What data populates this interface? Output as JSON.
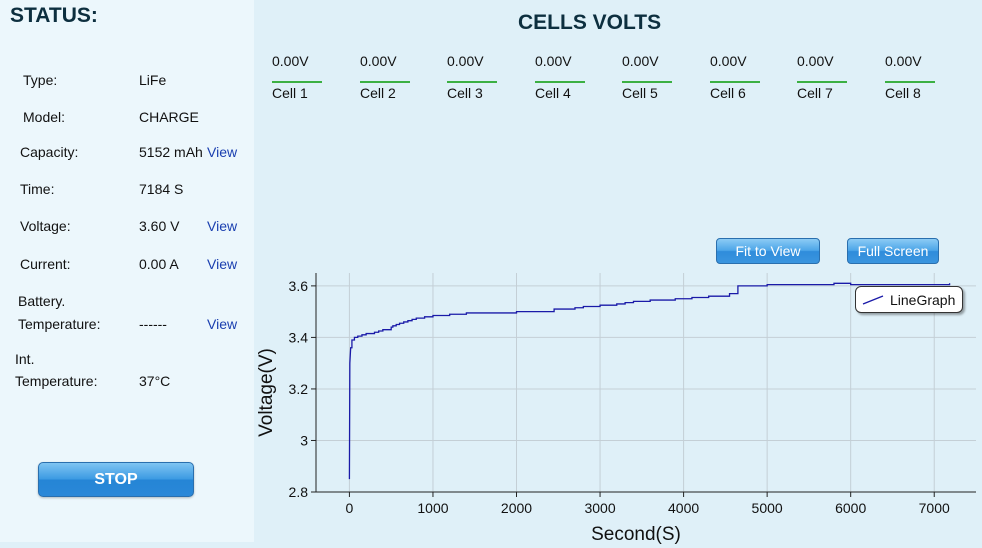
{
  "status": {
    "title": "STATUS:",
    "rows": [
      {
        "label": "Type:",
        "value": "LiFe",
        "view": ""
      },
      {
        "label": "Model:",
        "value": "CHARGE",
        "view": ""
      },
      {
        "label": "Capacity:",
        "value": "5152 mAh",
        "view": "View"
      },
      {
        "label": "Time:",
        "value": "7184 S",
        "view": ""
      },
      {
        "label": "Voltage:",
        "value": "3.60 V",
        "view": "View"
      },
      {
        "label": "Current:",
        "value": "0.00 A",
        "view": "View"
      },
      {
        "label_line1": "Battery.",
        "label_line2": "Temperature:",
        "value": "------",
        "view": "View"
      },
      {
        "label_line1": "Int.",
        "label_line2": "Temperature:",
        "value": "37°C",
        "view": ""
      }
    ],
    "stop_label": "STOP"
  },
  "cells": {
    "title": "CELLS VOLTS",
    "items": [
      {
        "value": "0.00V",
        "name": "Cell 1"
      },
      {
        "value": "0.00V",
        "name": "Cell 2"
      },
      {
        "value": "0.00V",
        "name": "Cell 3"
      },
      {
        "value": "0.00V",
        "name": "Cell 4"
      },
      {
        "value": "0.00V",
        "name": "Cell 5"
      },
      {
        "value": "0.00V",
        "name": "Cell 6"
      },
      {
        "value": "0.00V",
        "name": "Cell 7"
      },
      {
        "value": "0.00V",
        "name": "Cell 8"
      }
    ]
  },
  "buttons": {
    "fit_to_view": "Fit to View",
    "full_screen": "Full Screen"
  },
  "colors": {
    "cell_bar": "#3cb043",
    "series": "#1a1aa8",
    "button": "#3a95df"
  },
  "chart_data": {
    "type": "line",
    "xlabel": "Second(S)",
    "ylabel": "Voltage(V)",
    "xlim": [
      -400,
      7500
    ],
    "ylim": [
      2.8,
      3.65
    ],
    "xticks": [
      0,
      1000,
      2000,
      3000,
      4000,
      5000,
      6000,
      7000
    ],
    "yticks": [
      2.8,
      3.0,
      3.2,
      3.4,
      3.6
    ],
    "ytick_labels": [
      "2.8",
      "3",
      "3.2",
      "3.4",
      "3.6"
    ],
    "grid": true,
    "legend": "top-right",
    "series": [
      {
        "name": "LineGraph",
        "x": [
          0,
          5,
          15,
          30,
          60,
          100,
          150,
          200,
          300,
          350,
          400,
          450,
          500,
          520,
          560,
          600,
          650,
          700,
          750,
          800,
          900,
          1000,
          1100,
          1200,
          1400,
          1700,
          2000,
          2200,
          2400,
          2450,
          2700,
          2800,
          3000,
          3200,
          3300,
          3400,
          3600,
          3700,
          3900,
          4000,
          4100,
          4300,
          4400,
          4500,
          4550,
          4600,
          4650,
          4700,
          5000,
          5300,
          5500,
          5800,
          6000,
          6300,
          6600,
          6900,
          7184
        ],
        "y": [
          2.85,
          3.3,
          3.36,
          3.39,
          3.4,
          3.405,
          3.41,
          3.415,
          3.42,
          3.425,
          3.43,
          3.43,
          3.44,
          3.445,
          3.45,
          3.455,
          3.46,
          3.465,
          3.47,
          3.475,
          3.48,
          3.485,
          3.485,
          3.49,
          3.495,
          3.495,
          3.5,
          3.5,
          3.5,
          3.51,
          3.515,
          3.52,
          3.525,
          3.53,
          3.535,
          3.54,
          3.545,
          3.545,
          3.55,
          3.55,
          3.555,
          3.56,
          3.56,
          3.56,
          3.57,
          3.57,
          3.6,
          3.6,
          3.605,
          3.605,
          3.605,
          3.61,
          3.605,
          3.605,
          3.605,
          3.605,
          3.61
        ]
      }
    ]
  }
}
